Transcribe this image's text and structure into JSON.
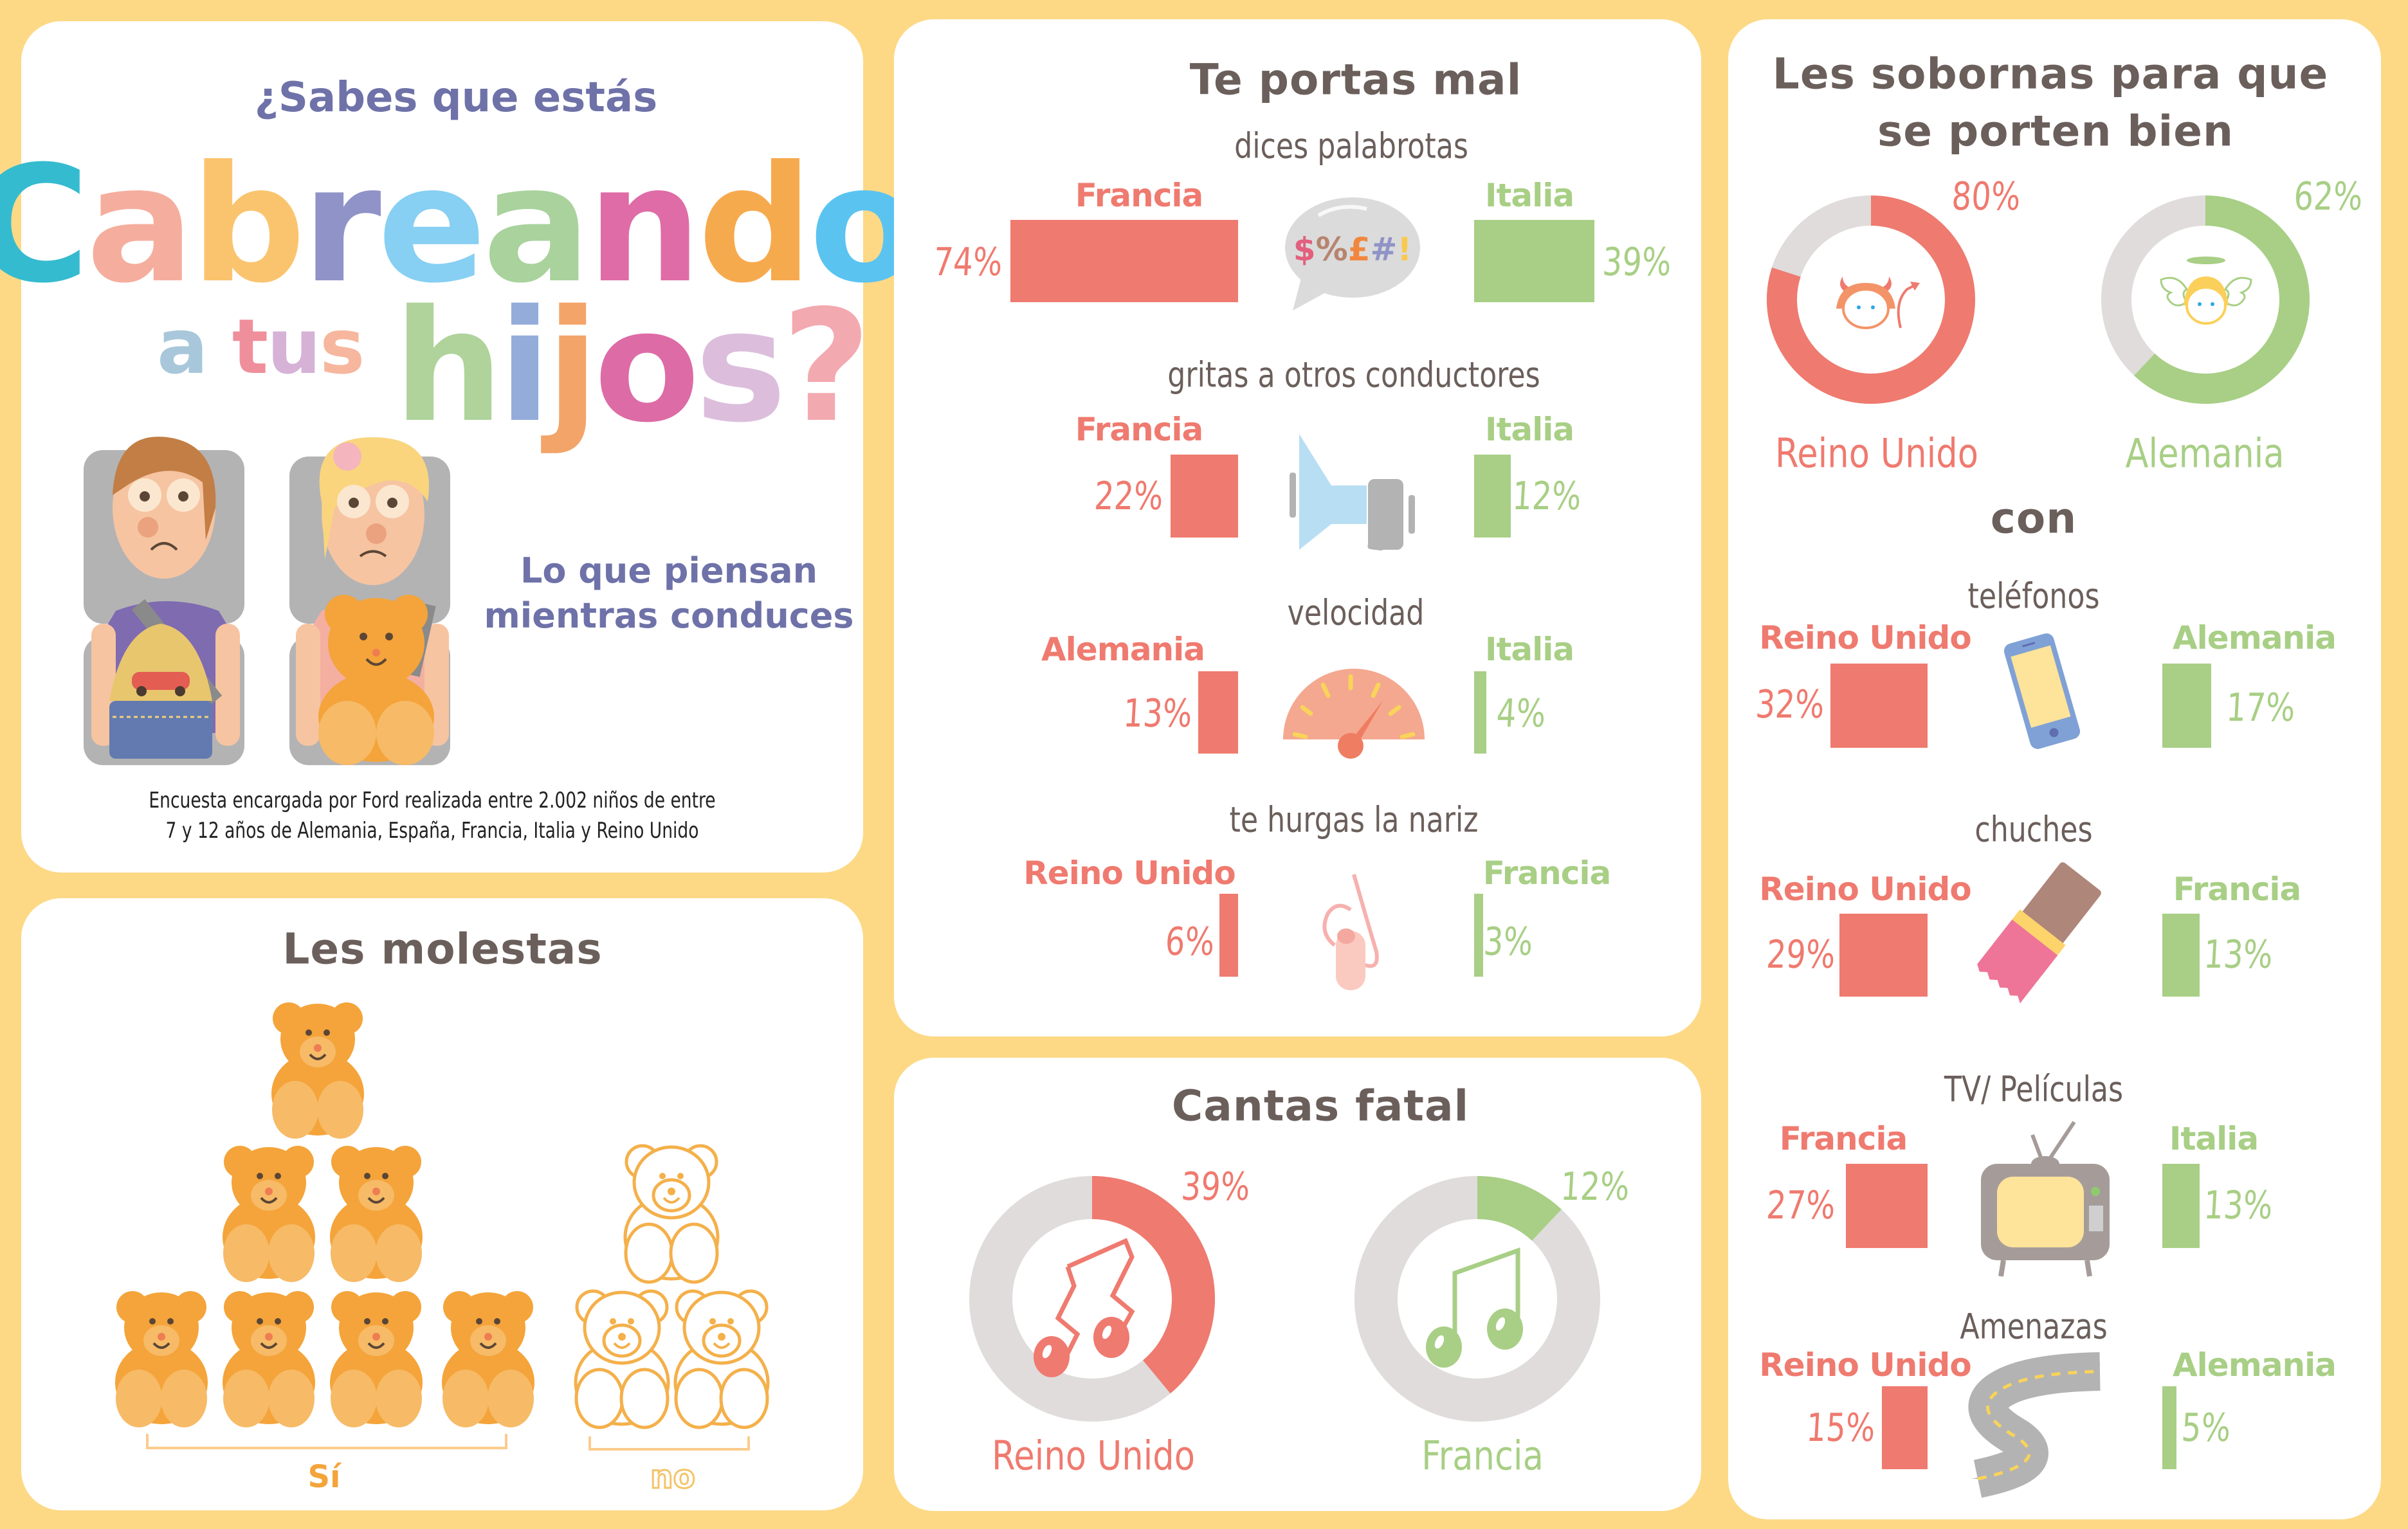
{
  "colors": {
    "background": "#FDD986",
    "panel": "#FFFFFF",
    "text_dark": "#6B5F5B",
    "accent_red": "#EF7A6F",
    "accent_green": "#A8CF85",
    "donut_track": "#DFDCDB",
    "purple_text": "#6E72A8",
    "bear_orange": "#F4A43A"
  },
  "intro": {
    "question_top": "¿Sabes que estás",
    "headline_letters": [
      {
        "ch": "C",
        "color": "#35BBCF"
      },
      {
        "ch": "a",
        "color": "#F5AE9E"
      },
      {
        "ch": "b",
        "color": "#FAC46E"
      },
      {
        "ch": "r",
        "color": "#8F93C7"
      },
      {
        "ch": "e",
        "color": "#87CFF3"
      },
      {
        "ch": "a",
        "color": "#A9D29C"
      },
      {
        "ch": "n",
        "color": "#DF6CA6"
      },
      {
        "ch": "d",
        "color": "#F6AA4E"
      },
      {
        "ch": "o",
        "color": "#5BC3F0"
      }
    ],
    "line2_small_letters": [
      {
        "ch": "a",
        "color": "#A8C7DB"
      },
      {
        "ch": " ",
        "color": "#FFFFFF"
      },
      {
        "ch": "t",
        "color": "#EF8F9B"
      },
      {
        "ch": "u",
        "color": "#D5B2D6"
      },
      {
        "ch": "s",
        "color": "#F6B79E"
      }
    ],
    "line2_big_letters": [
      {
        "ch": "h",
        "color": "#AFD39A"
      },
      {
        "ch": "i",
        "color": "#93ACDA"
      },
      {
        "ch": "j",
        "color": "#F3A469"
      },
      {
        "ch": "o",
        "color": "#DD6BA6"
      },
      {
        "ch": "s",
        "color": "#DCBEDC"
      },
      {
        "ch": "?",
        "color": "#F3A9B0"
      }
    ],
    "subtitle_line1": "Lo que piensan",
    "subtitle_line2": "mientras conduces",
    "survey_line1": "Encuesta encargada por Ford realizada entre 2.002 niños de entre",
    "survey_line2": "7 y 12 años de Alemania, España, Francia, Italia y Reino Unido"
  },
  "molestas": {
    "title": "Les molestas",
    "yes_label": "Sí",
    "no_label": "no",
    "yes_count": 7,
    "no_count": 3,
    "total": 10
  },
  "portas_mal": {
    "title": "Te portas mal",
    "rows": [
      {
        "subtitle": "dices palabrotas",
        "icon": "speech-bubble-icon",
        "icon_text": "$%£#!",
        "left": {
          "country": "Francia",
          "value": 74,
          "label": "74%"
        },
        "right": {
          "country": "Italia",
          "value": 39,
          "label": "39%"
        }
      },
      {
        "subtitle": "gritas a otros conductores",
        "icon": "megaphone-icon",
        "left": {
          "country": "Francia",
          "value": 22,
          "label": "22%"
        },
        "right": {
          "country": "Italia",
          "value": 12,
          "label": "12%"
        }
      },
      {
        "subtitle": "velocidad",
        "icon": "speedometer-icon",
        "left": {
          "country": "Alemania",
          "value": 13,
          "label": "13%"
        },
        "right": {
          "country": "Italia",
          "value": 4,
          "label": "4%"
        }
      },
      {
        "subtitle": "te hurgas la nariz",
        "icon": "nose-picking-icon",
        "left": {
          "country": "Reino Unido",
          "value": 6,
          "label": "6%"
        },
        "right": {
          "country": "Francia",
          "value": 3,
          "label": "3%"
        }
      }
    ]
  },
  "cantas_fatal": {
    "title": "Cantas fatal",
    "donuts": [
      {
        "country": "Reino Unido",
        "value": 39,
        "label": "39%",
        "icon": "broken-music-note-icon"
      },
      {
        "country": "Francia",
        "value": 12,
        "label": "12%",
        "icon": "music-note-icon"
      }
    ]
  },
  "sobornas": {
    "title_line1": "Les sobornas para que",
    "title_line2": "se porten bien",
    "donuts": [
      {
        "country": "Reino Unido",
        "value": 80,
        "label": "80%",
        "icon": "devil-icon"
      },
      {
        "country": "Alemania",
        "value": 62,
        "label": "62%",
        "icon": "angel-icon"
      }
    ],
    "with_label": "con",
    "rows": [
      {
        "subtitle": "teléfonos",
        "icon": "phone-icon",
        "left": {
          "country": "Reino Unido",
          "value": 32,
          "label": "32%"
        },
        "right": {
          "country": "Alemania",
          "value": 17,
          "label": "17%"
        }
      },
      {
        "subtitle": "chuches",
        "icon": "chocolate-bar-icon",
        "left": {
          "country": "Reino Unido",
          "value": 29,
          "label": "29%"
        },
        "right": {
          "country": "Francia",
          "value": 13,
          "label": "13%"
        }
      },
      {
        "subtitle": "TV/ Películas",
        "icon": "tv-icon",
        "left": {
          "country": "Francia",
          "value": 27,
          "label": "27%"
        },
        "right": {
          "country": "Italia",
          "value": 13,
          "label": "13%"
        }
      },
      {
        "subtitle": "Amenazas",
        "icon": "road-icon",
        "left": {
          "country": "Reino Unido",
          "value": 15,
          "label": "15%"
        },
        "right": {
          "country": "Alemania",
          "value": 5,
          "label": "5%"
        }
      }
    ]
  }
}
